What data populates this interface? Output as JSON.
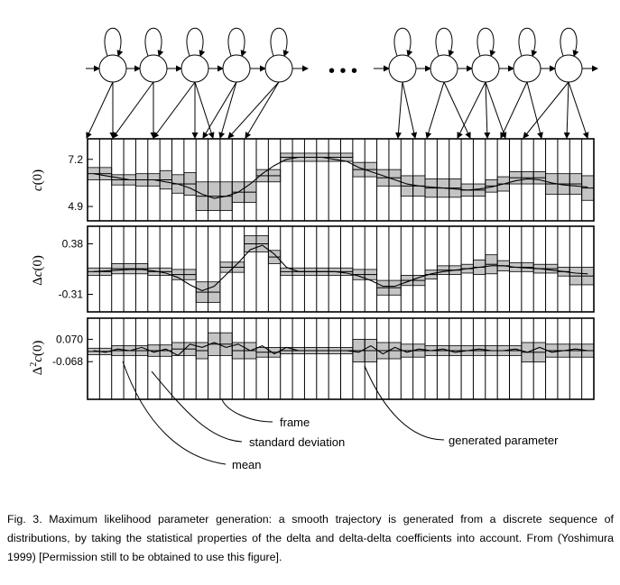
{
  "panels": [
    {
      "id": "c",
      "ylabel_main": "c",
      "ylabel_arg": "(0)",
      "ylabel_prefix": "",
      "ylabel_sup": "",
      "ticks": [
        {
          "label": "7.2",
          "value": 7.2
        },
        {
          "label": "4.9",
          "value": 4.9
        }
      ],
      "range": [
        4.2,
        8.2
      ],
      "means": [
        6.5,
        6.5,
        6.2,
        6.2,
        6.2,
        6.2,
        6.2,
        6.0,
        6.0,
        5.4,
        5.4,
        5.4,
        5.6,
        5.6,
        6.4,
        6.4,
        7.3,
        7.3,
        7.3,
        7.3,
        7.3,
        7.3,
        6.7,
        6.7,
        6.3,
        6.3,
        5.9,
        5.9,
        5.8,
        5.8,
        5.8,
        5.7,
        5.7,
        5.9,
        6.0,
        6.3,
        6.3,
        6.3,
        6.0,
        6.0,
        6.0,
        5.8
      ],
      "heights": [
        0.6,
        0.6,
        0.5,
        0.5,
        0.6,
        0.6,
        0.9,
        0.9,
        1.1,
        1.4,
        1.4,
        1.4,
        1.0,
        1.0,
        0.6,
        0.6,
        0.4,
        0.4,
        0.4,
        0.4,
        0.4,
        0.4,
        0.7,
        0.7,
        0.8,
        0.8,
        1.0,
        1.0,
        0.9,
        0.9,
        0.9,
        0.6,
        0.6,
        0.6,
        0.7,
        0.6,
        0.6,
        0.6,
        1.0,
        1.0,
        1.0,
        1.2
      ],
      "trajectory": [
        6.5,
        6.4,
        6.3,
        6.2,
        6.2,
        6.2,
        6.1,
        6.0,
        5.8,
        5.5,
        5.3,
        5.4,
        5.6,
        6.0,
        6.5,
        6.9,
        7.2,
        7.3,
        7.3,
        7.3,
        7.2,
        7.1,
        6.8,
        6.6,
        6.4,
        6.2,
        6.0,
        5.9,
        5.85,
        5.8,
        5.75,
        5.7,
        5.75,
        5.85,
        6.0,
        6.15,
        6.25,
        6.2,
        6.05,
        5.95,
        5.9,
        5.85
      ]
    },
    {
      "id": "dc",
      "ylabel_main": "c",
      "ylabel_arg": "(0)",
      "ylabel_prefix": "Δ",
      "ylabel_sup": "",
      "ticks": [
        {
          "label": "0.38",
          "value": 0.38
        },
        {
          "label": "-0.31",
          "value": -0.31
        }
      ],
      "range": [
        -0.55,
        0.62
      ],
      "means": [
        0.0,
        0.0,
        0.04,
        0.04,
        0.04,
        0.0,
        0.0,
        -0.04,
        -0.04,
        -0.28,
        -0.28,
        0.06,
        0.06,
        0.38,
        0.38,
        0.2,
        0.0,
        0.0,
        0.0,
        0.0,
        0.0,
        0.0,
        -0.04,
        -0.04,
        -0.22,
        -0.22,
        -0.12,
        -0.12,
        -0.04,
        0.02,
        0.02,
        0.04,
        0.06,
        0.1,
        0.08,
        0.06,
        0.06,
        0.04,
        0.04,
        0.0,
        -0.06,
        -0.06
      ],
      "heights": [
        0.1,
        0.1,
        0.14,
        0.14,
        0.14,
        0.1,
        0.1,
        0.14,
        0.14,
        0.28,
        0.28,
        0.14,
        0.14,
        0.22,
        0.22,
        0.18,
        0.1,
        0.1,
        0.1,
        0.1,
        0.1,
        0.1,
        0.14,
        0.14,
        0.2,
        0.2,
        0.14,
        0.14,
        0.12,
        0.12,
        0.12,
        0.12,
        0.2,
        0.26,
        0.14,
        0.12,
        0.12,
        0.12,
        0.12,
        0.12,
        0.24,
        0.24
      ],
      "trajectory": [
        0.0,
        0.01,
        0.02,
        0.03,
        0.03,
        0.01,
        -0.02,
        -0.08,
        -0.18,
        -0.26,
        -0.2,
        -0.04,
        0.12,
        0.3,
        0.36,
        0.24,
        0.06,
        0.0,
        0.0,
        0.0,
        0.0,
        -0.02,
        -0.06,
        -0.12,
        -0.2,
        -0.2,
        -0.14,
        -0.08,
        -0.03,
        0.0,
        0.02,
        0.04,
        0.06,
        0.08,
        0.08,
        0.06,
        0.05,
        0.04,
        0.02,
        0.0,
        -0.02,
        -0.03
      ]
    },
    {
      "id": "ddc",
      "ylabel_main": "c",
      "ylabel_arg": "(0)",
      "ylabel_prefix": "Δ",
      "ylabel_sup": "2",
      "ticks": [
        {
          "label": "0.070",
          "value": 0.07
        },
        {
          "label": "-0.068",
          "value": -0.068
        }
      ],
      "range": [
        -0.3,
        0.2
      ],
      "means": [
        -0.005,
        -0.005,
        0.0,
        0.0,
        0.0,
        0.0,
        0.0,
        0.01,
        0.01,
        0.0,
        0.04,
        0.04,
        0.0,
        0.0,
        -0.01,
        -0.01,
        0.0,
        0.0,
        0.0,
        0.0,
        0.0,
        0.0,
        0.0,
        0.0,
        0.0,
        0.0,
        0.0,
        0.0,
        0.0,
        0.0,
        0.0,
        0.0,
        0.0,
        0.0,
        0.0,
        0.0,
        -0.01,
        -0.01,
        0.0,
        0.0,
        0.0,
        0.0
      ],
      "heights": [
        0.04,
        0.04,
        0.06,
        0.06,
        0.06,
        0.07,
        0.07,
        0.08,
        0.08,
        0.1,
        0.14,
        0.14,
        0.1,
        0.1,
        0.06,
        0.06,
        0.04,
        0.04,
        0.04,
        0.04,
        0.04,
        0.04,
        0.14,
        0.14,
        0.1,
        0.1,
        0.08,
        0.08,
        0.06,
        0.06,
        0.06,
        0.06,
        0.06,
        0.06,
        0.06,
        0.06,
        0.12,
        0.12,
        0.08,
        0.08,
        0.08,
        0.08
      ],
      "trajectory": [
        0.0,
        -0.01,
        0.01,
        0.0,
        0.02,
        -0.01,
        0.01,
        -0.03,
        0.04,
        0.02,
        0.05,
        0.02,
        0.04,
        0.0,
        0.03,
        -0.02,
        0.02,
        0.0,
        0.0,
        0.0,
        0.0,
        0.0,
        -0.01,
        0.03,
        -0.02,
        0.02,
        -0.01,
        0.01,
        0.0,
        0.01,
        -0.01,
        0.0,
        0.01,
        0.0,
        0.0,
        0.01,
        -0.01,
        0.02,
        -0.01,
        0.0,
        0.01,
        0.0
      ]
    }
  ],
  "dots": "• • •",
  "annotations": {
    "frame": "frame",
    "standard_deviation": "standard deviation",
    "mean": "mean",
    "generated_parameter": "generated parameter"
  },
  "caption": "Fig. 3.  Maximum likelihood parameter generation: a smooth trajectory is generated from a discrete sequence of distributions, by taking the statistical properties of the delta and delta-delta coefficients into account. From (Yoshimura 1999) [Permission still to be obtained to use this figure]."
}
